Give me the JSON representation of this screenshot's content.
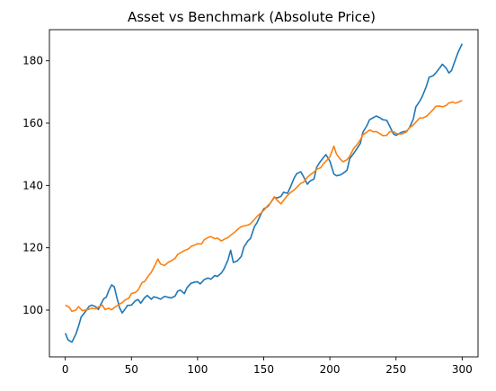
{
  "chart_data": {
    "type": "line",
    "title": "Asset vs Benchmark (Absolute Price)",
    "xlabel": "",
    "ylabel": "",
    "xlim": [
      -12,
      312
    ],
    "ylim": [
      85,
      190
    ],
    "x_ticks": [
      0,
      50,
      100,
      150,
      200,
      250,
      300
    ],
    "y_ticks": [
      100,
      120,
      140,
      160,
      180
    ],
    "grid": false,
    "legend": "none",
    "series": [
      {
        "color": "#1f77b4",
        "points": [
          [
            0,
            92.6
          ],
          [
            2,
            90.5
          ],
          [
            5,
            89.7
          ],
          [
            8,
            92.3
          ],
          [
            10,
            94.8
          ],
          [
            12,
            97.8
          ],
          [
            15,
            99.4
          ],
          [
            18,
            101.2
          ],
          [
            20,
            101.6
          ],
          [
            23,
            101.1
          ],
          [
            25,
            100.2
          ],
          [
            27,
            102.0
          ],
          [
            29,
            103.6
          ],
          [
            31,
            104.2
          ],
          [
            33,
            106.4
          ],
          [
            35,
            108.1
          ],
          [
            37,
            107.5
          ],
          [
            39,
            104.0
          ],
          [
            41,
            100.8
          ],
          [
            43,
            99.1
          ],
          [
            45,
            100.2
          ],
          [
            47,
            101.5
          ],
          [
            50,
            101.6
          ],
          [
            53,
            103.0
          ],
          [
            55,
            103.4
          ],
          [
            57,
            102.2
          ],
          [
            60,
            104.0
          ],
          [
            62,
            104.7
          ],
          [
            65,
            103.5
          ],
          [
            67,
            104.3
          ],
          [
            70,
            103.9
          ],
          [
            72,
            103.5
          ],
          [
            75,
            104.4
          ],
          [
            78,
            104.1
          ],
          [
            80,
            103.9
          ],
          [
            83,
            104.5
          ],
          [
            85,
            106.1
          ],
          [
            87,
            106.4
          ],
          [
            90,
            105.3
          ],
          [
            92,
            107.2
          ],
          [
            95,
            108.6
          ],
          [
            98,
            109.0
          ],
          [
            100,
            109.1
          ],
          [
            102,
            108.4
          ],
          [
            105,
            109.8
          ],
          [
            108,
            110.3
          ],
          [
            110,
            109.9
          ],
          [
            113,
            111.1
          ],
          [
            115,
            110.8
          ],
          [
            118,
            111.9
          ],
          [
            120,
            113.2
          ],
          [
            123,
            116.1
          ],
          [
            125,
            119.2
          ],
          [
            127,
            115.3
          ],
          [
            130,
            115.8
          ],
          [
            133,
            117.2
          ],
          [
            135,
            120.2
          ],
          [
            138,
            122.2
          ],
          [
            140,
            123.0
          ],
          [
            143,
            126.8
          ],
          [
            145,
            128.1
          ],
          [
            148,
            130.9
          ],
          [
            150,
            132.5
          ],
          [
            153,
            133.2
          ],
          [
            155,
            134.3
          ],
          [
            158,
            136.2
          ],
          [
            160,
            136.0
          ],
          [
            163,
            136.5
          ],
          [
            165,
            137.8
          ],
          [
            168,
            137.5
          ],
          [
            170,
            139.3
          ],
          [
            173,
            142.4
          ],
          [
            175,
            143.8
          ],
          [
            178,
            144.4
          ],
          [
            180,
            142.9
          ],
          [
            183,
            140.4
          ],
          [
            185,
            141.4
          ],
          [
            188,
            142.1
          ],
          [
            190,
            145.8
          ],
          [
            192,
            147.2
          ],
          [
            195,
            148.9
          ],
          [
            197,
            149.9
          ],
          [
            200,
            147.8
          ],
          [
            203,
            143.7
          ],
          [
            205,
            143.1
          ],
          [
            208,
            143.4
          ],
          [
            210,
            143.9
          ],
          [
            213,
            144.9
          ],
          [
            215,
            148.6
          ],
          [
            218,
            150.3
          ],
          [
            220,
            151.5
          ],
          [
            223,
            153.5
          ],
          [
            225,
            157.1
          ],
          [
            228,
            159.2
          ],
          [
            230,
            161.1
          ],
          [
            233,
            161.8
          ],
          [
            235,
            162.3
          ],
          [
            238,
            161.7
          ],
          [
            240,
            161.1
          ],
          [
            243,
            160.9
          ],
          [
            245,
            159.2
          ],
          [
            248,
            156.6
          ],
          [
            250,
            156.1
          ],
          [
            253,
            156.8
          ],
          [
            255,
            157.2
          ],
          [
            258,
            157.4
          ],
          [
            260,
            158.4
          ],
          [
            263,
            161.2
          ],
          [
            265,
            165.2
          ],
          [
            268,
            167.1
          ],
          [
            270,
            168.7
          ],
          [
            273,
            171.9
          ],
          [
            275,
            174.7
          ],
          [
            278,
            175.2
          ],
          [
            280,
            176.1
          ],
          [
            283,
            177.7
          ],
          [
            285,
            178.9
          ],
          [
            288,
            177.6
          ],
          [
            290,
            176.1
          ],
          [
            292,
            176.9
          ],
          [
            295,
            180.5
          ],
          [
            297,
            182.8
          ],
          [
            300,
            185.5
          ]
        ]
      },
      {
        "color": "#ff7f0e",
        "points": [
          [
            0,
            101.6
          ],
          [
            3,
            100.9
          ],
          [
            5,
            99.6
          ],
          [
            8,
            100.0
          ],
          [
            10,
            101.1
          ],
          [
            13,
            99.8
          ],
          [
            15,
            100.0
          ],
          [
            18,
            100.3
          ],
          [
            20,
            100.6
          ],
          [
            23,
            100.4
          ],
          [
            25,
            101.0
          ],
          [
            28,
            101.6
          ],
          [
            30,
            100.2
          ],
          [
            33,
            100.6
          ],
          [
            35,
            100.1
          ],
          [
            37,
            100.8
          ],
          [
            40,
            101.7
          ],
          [
            43,
            102.4
          ],
          [
            45,
            103.2
          ],
          [
            48,
            103.8
          ],
          [
            50,
            105.3
          ],
          [
            53,
            105.7
          ],
          [
            55,
            106.4
          ],
          [
            58,
            108.8
          ],
          [
            60,
            109.2
          ],
          [
            63,
            111.1
          ],
          [
            65,
            112.1
          ],
          [
            68,
            114.6
          ],
          [
            70,
            116.4
          ],
          [
            72,
            114.8
          ],
          [
            75,
            114.3
          ],
          [
            78,
            115.4
          ],
          [
            80,
            115.8
          ],
          [
            83,
            116.6
          ],
          [
            85,
            117.9
          ],
          [
            88,
            118.6
          ],
          [
            90,
            119.1
          ],
          [
            93,
            119.6
          ],
          [
            95,
            120.4
          ],
          [
            98,
            120.9
          ],
          [
            100,
            121.3
          ],
          [
            103,
            121.2
          ],
          [
            105,
            122.6
          ],
          [
            108,
            123.3
          ],
          [
            110,
            123.6
          ],
          [
            113,
            122.9
          ],
          [
            115,
            123.1
          ],
          [
            118,
            122.2
          ],
          [
            120,
            122.7
          ],
          [
            123,
            123.3
          ],
          [
            125,
            124.0
          ],
          [
            128,
            125.0
          ],
          [
            130,
            125.8
          ],
          [
            133,
            126.8
          ],
          [
            135,
            127.0
          ],
          [
            138,
            127.3
          ],
          [
            140,
            127.7
          ],
          [
            143,
            129.1
          ],
          [
            145,
            130.1
          ],
          [
            148,
            131.2
          ],
          [
            150,
            132.0
          ],
          [
            153,
            133.5
          ],
          [
            155,
            134.3
          ],
          [
            158,
            136.4
          ],
          [
            160,
            135.3
          ],
          [
            163,
            134.1
          ],
          [
            165,
            135.2
          ],
          [
            168,
            136.8
          ],
          [
            170,
            137.6
          ],
          [
            173,
            138.6
          ],
          [
            175,
            139.4
          ],
          [
            178,
            140.7
          ],
          [
            180,
            141.0
          ],
          [
            183,
            142.6
          ],
          [
            185,
            143.4
          ],
          [
            188,
            144.3
          ],
          [
            190,
            145.2
          ],
          [
            193,
            145.7
          ],
          [
            195,
            146.9
          ],
          [
            198,
            148.2
          ],
          [
            200,
            149.2
          ],
          [
            203,
            152.6
          ],
          [
            205,
            150.1
          ],
          [
            208,
            148.4
          ],
          [
            210,
            147.6
          ],
          [
            213,
            148.3
          ],
          [
            215,
            149.4
          ],
          [
            218,
            151.9
          ],
          [
            220,
            152.8
          ],
          [
            223,
            154.6
          ],
          [
            225,
            156.3
          ],
          [
            228,
            157.1
          ],
          [
            230,
            157.8
          ],
          [
            233,
            157.2
          ],
          [
            235,
            157.3
          ],
          [
            238,
            156.6
          ],
          [
            240,
            156.0
          ],
          [
            243,
            156.1
          ],
          [
            245,
            157.2
          ],
          [
            248,
            157.3
          ],
          [
            250,
            156.7
          ],
          [
            253,
            156.5
          ],
          [
            255,
            156.6
          ],
          [
            258,
            157.2
          ],
          [
            260,
            158.5
          ],
          [
            263,
            159.4
          ],
          [
            265,
            160.3
          ],
          [
            268,
            161.7
          ],
          [
            270,
            161.6
          ],
          [
            273,
            162.2
          ],
          [
            275,
            163.0
          ],
          [
            278,
            164.3
          ],
          [
            280,
            165.4
          ],
          [
            283,
            165.5
          ],
          [
            285,
            165.2
          ],
          [
            288,
            165.7
          ],
          [
            290,
            166.5
          ],
          [
            293,
            166.8
          ],
          [
            295,
            166.4
          ],
          [
            298,
            166.9
          ],
          [
            300,
            167.3
          ]
        ]
      }
    ]
  }
}
